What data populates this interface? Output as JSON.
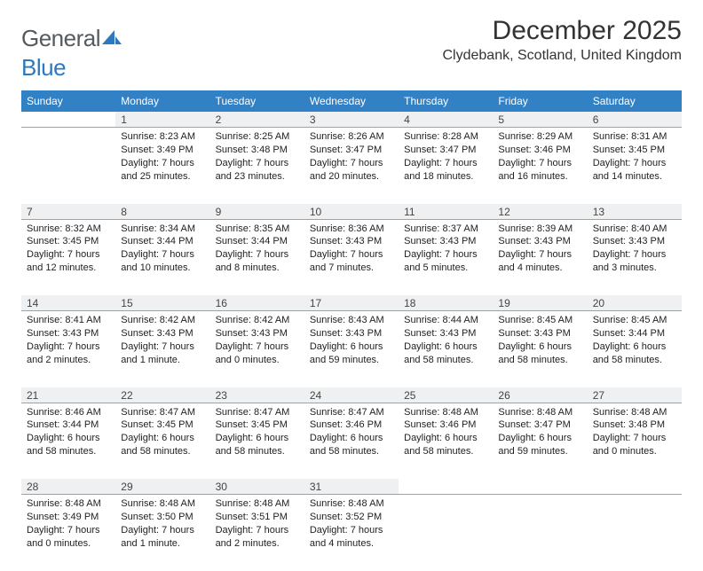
{
  "logo": {
    "word1": "General",
    "word2": "Blue"
  },
  "title": "December 2025",
  "location": "Clydebank, Scotland, United Kingdom",
  "colors": {
    "header_bg": "#3281c5",
    "header_text": "#ffffff",
    "daynum_bg": "#eef0f1",
    "daynum_border": "#9ca3a7",
    "logo_gray": "#555a5f",
    "logo_blue": "#2f78bd"
  },
  "weekdays": [
    "Sunday",
    "Monday",
    "Tuesday",
    "Wednesday",
    "Thursday",
    "Friday",
    "Saturday"
  ],
  "weeks": [
    [
      null,
      {
        "n": "1",
        "sr": "Sunrise: 8:23 AM",
        "ss": "Sunset: 3:49 PM",
        "dl": "Daylight: 7 hours and 25 minutes."
      },
      {
        "n": "2",
        "sr": "Sunrise: 8:25 AM",
        "ss": "Sunset: 3:48 PM",
        "dl": "Daylight: 7 hours and 23 minutes."
      },
      {
        "n": "3",
        "sr": "Sunrise: 8:26 AM",
        "ss": "Sunset: 3:47 PM",
        "dl": "Daylight: 7 hours and 20 minutes."
      },
      {
        "n": "4",
        "sr": "Sunrise: 8:28 AM",
        "ss": "Sunset: 3:47 PM",
        "dl": "Daylight: 7 hours and 18 minutes."
      },
      {
        "n": "5",
        "sr": "Sunrise: 8:29 AM",
        "ss": "Sunset: 3:46 PM",
        "dl": "Daylight: 7 hours and 16 minutes."
      },
      {
        "n": "6",
        "sr": "Sunrise: 8:31 AM",
        "ss": "Sunset: 3:45 PM",
        "dl": "Daylight: 7 hours and 14 minutes."
      }
    ],
    [
      {
        "n": "7",
        "sr": "Sunrise: 8:32 AM",
        "ss": "Sunset: 3:45 PM",
        "dl": "Daylight: 7 hours and 12 minutes."
      },
      {
        "n": "8",
        "sr": "Sunrise: 8:34 AM",
        "ss": "Sunset: 3:44 PM",
        "dl": "Daylight: 7 hours and 10 minutes."
      },
      {
        "n": "9",
        "sr": "Sunrise: 8:35 AM",
        "ss": "Sunset: 3:44 PM",
        "dl": "Daylight: 7 hours and 8 minutes."
      },
      {
        "n": "10",
        "sr": "Sunrise: 8:36 AM",
        "ss": "Sunset: 3:43 PM",
        "dl": "Daylight: 7 hours and 7 minutes."
      },
      {
        "n": "11",
        "sr": "Sunrise: 8:37 AM",
        "ss": "Sunset: 3:43 PM",
        "dl": "Daylight: 7 hours and 5 minutes."
      },
      {
        "n": "12",
        "sr": "Sunrise: 8:39 AM",
        "ss": "Sunset: 3:43 PM",
        "dl": "Daylight: 7 hours and 4 minutes."
      },
      {
        "n": "13",
        "sr": "Sunrise: 8:40 AM",
        "ss": "Sunset: 3:43 PM",
        "dl": "Daylight: 7 hours and 3 minutes."
      }
    ],
    [
      {
        "n": "14",
        "sr": "Sunrise: 8:41 AM",
        "ss": "Sunset: 3:43 PM",
        "dl": "Daylight: 7 hours and 2 minutes."
      },
      {
        "n": "15",
        "sr": "Sunrise: 8:42 AM",
        "ss": "Sunset: 3:43 PM",
        "dl": "Daylight: 7 hours and 1 minute."
      },
      {
        "n": "16",
        "sr": "Sunrise: 8:42 AM",
        "ss": "Sunset: 3:43 PM",
        "dl": "Daylight: 7 hours and 0 minutes."
      },
      {
        "n": "17",
        "sr": "Sunrise: 8:43 AM",
        "ss": "Sunset: 3:43 PM",
        "dl": "Daylight: 6 hours and 59 minutes."
      },
      {
        "n": "18",
        "sr": "Sunrise: 8:44 AM",
        "ss": "Sunset: 3:43 PM",
        "dl": "Daylight: 6 hours and 58 minutes."
      },
      {
        "n": "19",
        "sr": "Sunrise: 8:45 AM",
        "ss": "Sunset: 3:43 PM",
        "dl": "Daylight: 6 hours and 58 minutes."
      },
      {
        "n": "20",
        "sr": "Sunrise: 8:45 AM",
        "ss": "Sunset: 3:44 PM",
        "dl": "Daylight: 6 hours and 58 minutes."
      }
    ],
    [
      {
        "n": "21",
        "sr": "Sunrise: 8:46 AM",
        "ss": "Sunset: 3:44 PM",
        "dl": "Daylight: 6 hours and 58 minutes."
      },
      {
        "n": "22",
        "sr": "Sunrise: 8:47 AM",
        "ss": "Sunset: 3:45 PM",
        "dl": "Daylight: 6 hours and 58 minutes."
      },
      {
        "n": "23",
        "sr": "Sunrise: 8:47 AM",
        "ss": "Sunset: 3:45 PM",
        "dl": "Daylight: 6 hours and 58 minutes."
      },
      {
        "n": "24",
        "sr": "Sunrise: 8:47 AM",
        "ss": "Sunset: 3:46 PM",
        "dl": "Daylight: 6 hours and 58 minutes."
      },
      {
        "n": "25",
        "sr": "Sunrise: 8:48 AM",
        "ss": "Sunset: 3:46 PM",
        "dl": "Daylight: 6 hours and 58 minutes."
      },
      {
        "n": "26",
        "sr": "Sunrise: 8:48 AM",
        "ss": "Sunset: 3:47 PM",
        "dl": "Daylight: 6 hours and 59 minutes."
      },
      {
        "n": "27",
        "sr": "Sunrise: 8:48 AM",
        "ss": "Sunset: 3:48 PM",
        "dl": "Daylight: 7 hours and 0 minutes."
      }
    ],
    [
      {
        "n": "28",
        "sr": "Sunrise: 8:48 AM",
        "ss": "Sunset: 3:49 PM",
        "dl": "Daylight: 7 hours and 0 minutes."
      },
      {
        "n": "29",
        "sr": "Sunrise: 8:48 AM",
        "ss": "Sunset: 3:50 PM",
        "dl": "Daylight: 7 hours and 1 minute."
      },
      {
        "n": "30",
        "sr": "Sunrise: 8:48 AM",
        "ss": "Sunset: 3:51 PM",
        "dl": "Daylight: 7 hours and 2 minutes."
      },
      {
        "n": "31",
        "sr": "Sunrise: 8:48 AM",
        "ss": "Sunset: 3:52 PM",
        "dl": "Daylight: 7 hours and 4 minutes."
      },
      null,
      null,
      null
    ]
  ]
}
